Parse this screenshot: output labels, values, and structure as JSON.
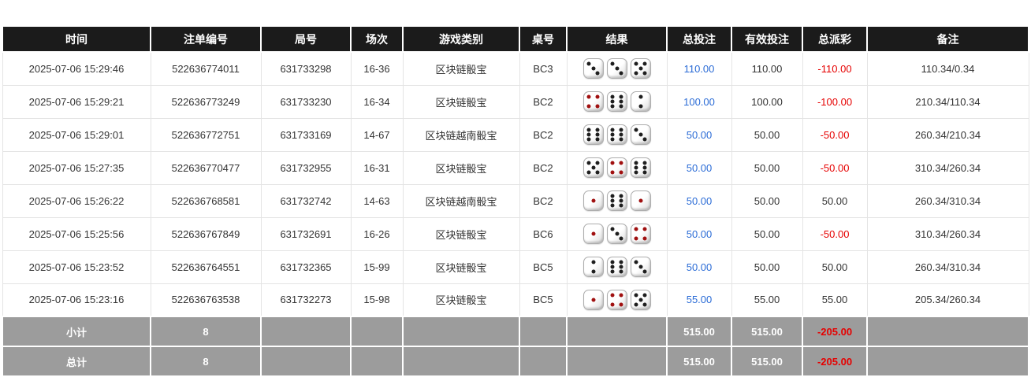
{
  "colors": {
    "header_bg": "#1b1b1b",
    "footer_bg": "#9c9c9c",
    "total_bet_blue": "#2a6bd6",
    "negative_red": "#e60000",
    "dice_dot_black": "#1e1e1e",
    "dice_dot_red": "#a01010"
  },
  "table": {
    "columns": [
      {
        "key": "time",
        "label": "时间"
      },
      {
        "key": "bet_id",
        "label": "注单编号"
      },
      {
        "key": "round_id",
        "label": "局号"
      },
      {
        "key": "session",
        "label": "场次"
      },
      {
        "key": "game_type",
        "label": "游戏类别"
      },
      {
        "key": "table_no",
        "label": "桌号"
      },
      {
        "key": "result",
        "label": "结果"
      },
      {
        "key": "total_bet",
        "label": "总投注"
      },
      {
        "key": "valid_bet",
        "label": "有效投注"
      },
      {
        "key": "total_payout",
        "label": "总派彩"
      },
      {
        "key": "remark",
        "label": "备注"
      }
    ],
    "rows": [
      {
        "time": "2025-07-06 15:29:46",
        "bet_id": "522636774011",
        "round_id": "631733298",
        "session": "16-36",
        "game_type": "区块链骰宝",
        "table_no": "BC3",
        "dice": [
          {
            "v": 3,
            "red": false
          },
          {
            "v": 3,
            "red": false
          },
          {
            "v": 5,
            "red": false
          }
        ],
        "total_bet": "110.00",
        "valid_bet": "110.00",
        "total_payout": "-110.00",
        "remark": "110.34/0.34"
      },
      {
        "time": "2025-07-06 15:29:21",
        "bet_id": "522636773249",
        "round_id": "631733230",
        "session": "16-34",
        "game_type": "区块链骰宝",
        "table_no": "BC2",
        "dice": [
          {
            "v": 4,
            "red": true
          },
          {
            "v": 6,
            "red": false
          },
          {
            "v": 2,
            "red": false
          }
        ],
        "total_bet": "100.00",
        "valid_bet": "100.00",
        "total_payout": "-100.00",
        "remark": "210.34/110.34"
      },
      {
        "time": "2025-07-06 15:29:01",
        "bet_id": "522636772751",
        "round_id": "631733169",
        "session": "14-67",
        "game_type": "区块链越南骰宝",
        "table_no": "BC2",
        "dice": [
          {
            "v": 6,
            "red": false
          },
          {
            "v": 6,
            "red": false
          },
          {
            "v": 3,
            "red": false
          }
        ],
        "total_bet": "50.00",
        "valid_bet": "50.00",
        "total_payout": "-50.00",
        "remark": "260.34/210.34"
      },
      {
        "time": "2025-07-06 15:27:35",
        "bet_id": "522636770477",
        "round_id": "631732955",
        "session": "16-31",
        "game_type": "区块链骰宝",
        "table_no": "BC2",
        "dice": [
          {
            "v": 5,
            "red": false
          },
          {
            "v": 4,
            "red": true
          },
          {
            "v": 6,
            "red": false
          }
        ],
        "total_bet": "50.00",
        "valid_bet": "50.00",
        "total_payout": "-50.00",
        "remark": "310.34/260.34"
      },
      {
        "time": "2025-07-06 15:26:22",
        "bet_id": "522636768581",
        "round_id": "631732742",
        "session": "14-63",
        "game_type": "区块链越南骰宝",
        "table_no": "BC2",
        "dice": [
          {
            "v": 1,
            "red": true
          },
          {
            "v": 6,
            "red": false
          },
          {
            "v": 1,
            "red": true
          }
        ],
        "total_bet": "50.00",
        "valid_bet": "50.00",
        "total_payout": "50.00",
        "remark": "260.34/310.34"
      },
      {
        "time": "2025-07-06 15:25:56",
        "bet_id": "522636767849",
        "round_id": "631732691",
        "session": "16-26",
        "game_type": "区块链骰宝",
        "table_no": "BC6",
        "dice": [
          {
            "v": 1,
            "red": true
          },
          {
            "v": 3,
            "red": false
          },
          {
            "v": 4,
            "red": true
          }
        ],
        "total_bet": "50.00",
        "valid_bet": "50.00",
        "total_payout": "-50.00",
        "remark": "310.34/260.34"
      },
      {
        "time": "2025-07-06 15:23:52",
        "bet_id": "522636764551",
        "round_id": "631732365",
        "session": "15-99",
        "game_type": "区块链骰宝",
        "table_no": "BC5",
        "dice": [
          {
            "v": 2,
            "red": false
          },
          {
            "v": 6,
            "red": false
          },
          {
            "v": 3,
            "red": false
          }
        ],
        "total_bet": "50.00",
        "valid_bet": "50.00",
        "total_payout": "50.00",
        "remark": "260.34/310.34"
      },
      {
        "time": "2025-07-06 15:23:16",
        "bet_id": "522636763538",
        "round_id": "631732273",
        "session": "15-98",
        "game_type": "区块链骰宝",
        "table_no": "BC5",
        "dice": [
          {
            "v": 1,
            "red": true
          },
          {
            "v": 4,
            "red": true
          },
          {
            "v": 5,
            "red": false
          }
        ],
        "total_bet": "55.00",
        "valid_bet": "55.00",
        "total_payout": "55.00",
        "remark": "205.34/260.34"
      }
    ],
    "footer_rows": [
      {
        "label": "小计",
        "count": "8",
        "total_bet": "515.00",
        "valid_bet": "515.00",
        "total_payout": "-205.00"
      },
      {
        "label": "总计",
        "count": "8",
        "total_bet": "515.00",
        "valid_bet": "515.00",
        "total_payout": "-205.00"
      }
    ]
  }
}
